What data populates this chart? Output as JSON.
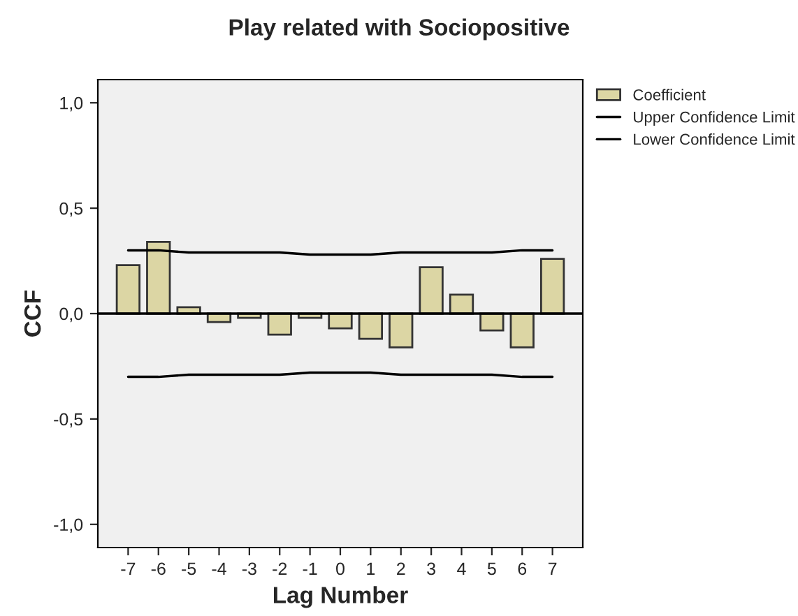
{
  "chart_data": {
    "type": "bar",
    "title": "Play related with Sociopositive",
    "xlabel": "Lag Number",
    "ylabel": "CCF",
    "categories": [
      "-7",
      "-6",
      "-5",
      "-4",
      "-3",
      "-2",
      "-1",
      "0",
      "1",
      "2",
      "3",
      "4",
      "5",
      "6",
      "7"
    ],
    "series": [
      {
        "name": "Coefficient",
        "type": "bar",
        "color": "#dcd6a4",
        "values": [
          0.23,
          0.34,
          0.03,
          -0.04,
          -0.02,
          -0.1,
          -0.02,
          -0.07,
          -0.12,
          -0.16,
          0.22,
          0.09,
          -0.08,
          -0.16,
          0.26
        ]
      },
      {
        "name": "Upper Confidence Limit",
        "type": "line",
        "color": "#000000",
        "values": [
          0.3,
          0.3,
          0.29,
          0.29,
          0.29,
          0.29,
          0.28,
          0.28,
          0.28,
          0.29,
          0.29,
          0.29,
          0.29,
          0.3,
          0.3
        ]
      },
      {
        "name": "Lower Confidence Limit",
        "type": "line",
        "color": "#000000",
        "values": [
          -0.3,
          -0.3,
          -0.29,
          -0.29,
          -0.29,
          -0.29,
          -0.28,
          -0.28,
          -0.28,
          -0.29,
          -0.29,
          -0.29,
          -0.29,
          -0.3,
          -0.3
        ]
      }
    ],
    "ylim": [
      -1.11,
      1.11
    ],
    "yticks": [
      {
        "value": -1.0,
        "label": "-1,0"
      },
      {
        "value": -0.5,
        "label": "-0,5"
      },
      {
        "value": 0.0,
        "label": "0,0"
      },
      {
        "value": 0.5,
        "label": "0,5"
      },
      {
        "value": 1.0,
        "label": "1,0"
      }
    ],
    "ref_lines": [
      {
        "axis": "y",
        "value": 0,
        "color": "#000000"
      }
    ],
    "legend": "top right",
    "grid": false
  }
}
